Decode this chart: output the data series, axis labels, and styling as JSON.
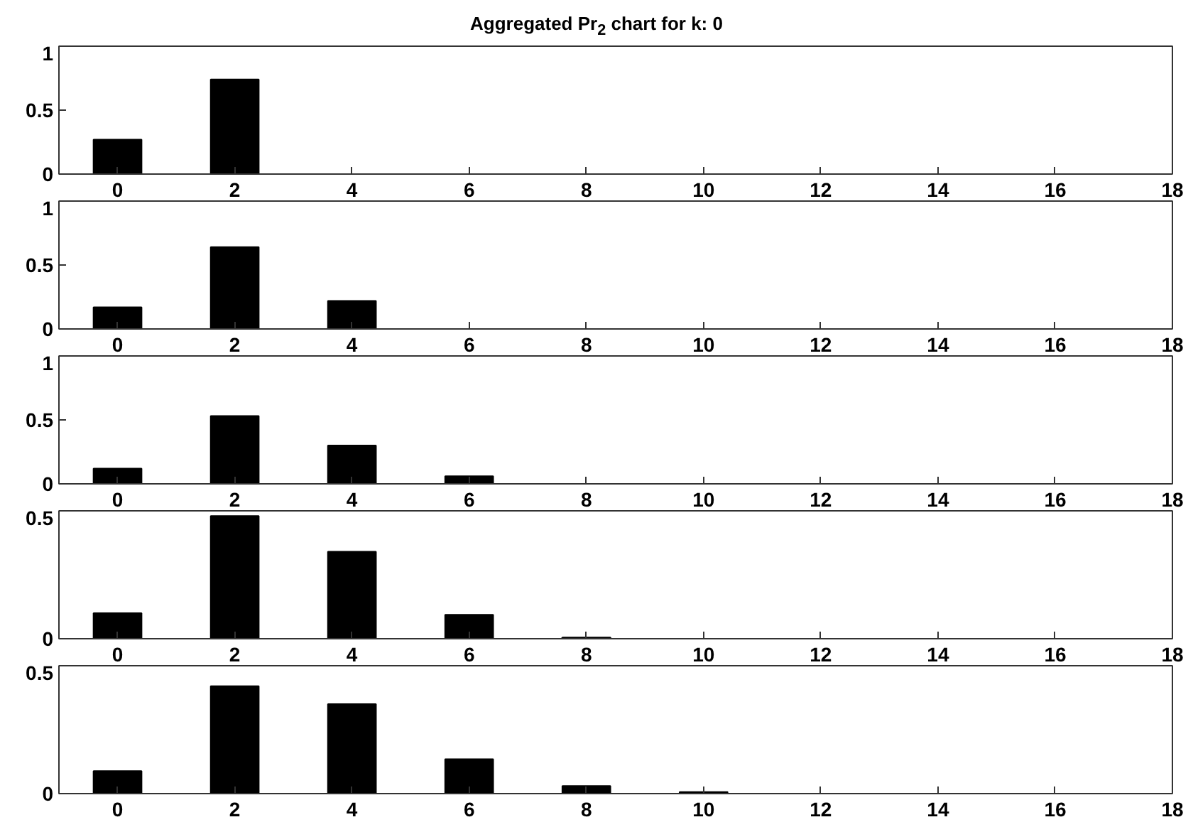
{
  "chart_data": [
    {
      "type": "bar",
      "title": "Aggregated Pr$_{2}$ chart for k: 0",
      "x": [
        0,
        2,
        4,
        6,
        8,
        10,
        12,
        14,
        16,
        18
      ],
      "values": [
        0.27,
        0.74,
        0,
        0,
        0,
        0,
        0,
        0,
        0,
        0
      ],
      "color": "#000000",
      "xlim": [
        -1,
        18
      ],
      "xticks": [
        0,
        2,
        4,
        6,
        8,
        10,
        12,
        14,
        16,
        18
      ],
      "ylim": [
        0,
        1
      ],
      "yticks": [
        0,
        0.5,
        1
      ],
      "grid": false
    },
    {
      "type": "bar",
      "x": [
        0,
        2,
        4,
        6,
        8,
        10,
        12,
        14,
        16,
        18
      ],
      "values": [
        0.17,
        0.64,
        0.22,
        0,
        0,
        0,
        0,
        0,
        0,
        0
      ],
      "color": "#000000",
      "xlim": [
        -1,
        18
      ],
      "xticks": [
        0,
        2,
        4,
        6,
        8,
        10,
        12,
        14,
        16,
        18
      ],
      "ylim": [
        0,
        1
      ],
      "yticks": [
        0,
        0.5,
        1
      ],
      "grid": false
    },
    {
      "type": "bar",
      "x": [
        0,
        2,
        4,
        6,
        8,
        10,
        12,
        14,
        16,
        18
      ],
      "values": [
        0.12,
        0.53,
        0.3,
        0.06,
        0,
        0,
        0,
        0,
        0,
        0
      ],
      "color": "#000000",
      "xlim": [
        -1,
        18
      ],
      "xticks": [
        0,
        2,
        4,
        6,
        8,
        10,
        12,
        14,
        16,
        18
      ],
      "ylim": [
        0,
        1
      ],
      "yticks": [
        0,
        0.5,
        1
      ],
      "grid": false
    },
    {
      "type": "bar",
      "x": [
        0,
        2,
        4,
        6,
        8,
        10,
        12,
        14,
        16,
        18
      ],
      "values": [
        0.1,
        0.48,
        0.34,
        0.094,
        0.005,
        0,
        0,
        0,
        0,
        0
      ],
      "color": "#000000",
      "xlim": [
        -1,
        18
      ],
      "xticks": [
        0,
        2,
        4,
        6,
        8,
        10,
        12,
        14,
        16,
        18
      ],
      "ylim": [
        0,
        0.5
      ],
      "yticks": [
        0,
        0.5
      ],
      "grid": false
    },
    {
      "type": "bar",
      "x": [
        0,
        2,
        4,
        6,
        8,
        10,
        12,
        14,
        16,
        18
      ],
      "values": [
        0.088,
        0.42,
        0.35,
        0.135,
        0.03,
        0.006,
        0,
        0,
        0,
        0
      ],
      "color": "#000000",
      "xlim": [
        -1,
        18
      ],
      "xticks": [
        0,
        2,
        4,
        6,
        8,
        10,
        12,
        14,
        16,
        18
      ],
      "ylim": [
        0,
        0.5
      ],
      "yticks": [
        0,
        0.5
      ],
      "grid": false
    }
  ]
}
